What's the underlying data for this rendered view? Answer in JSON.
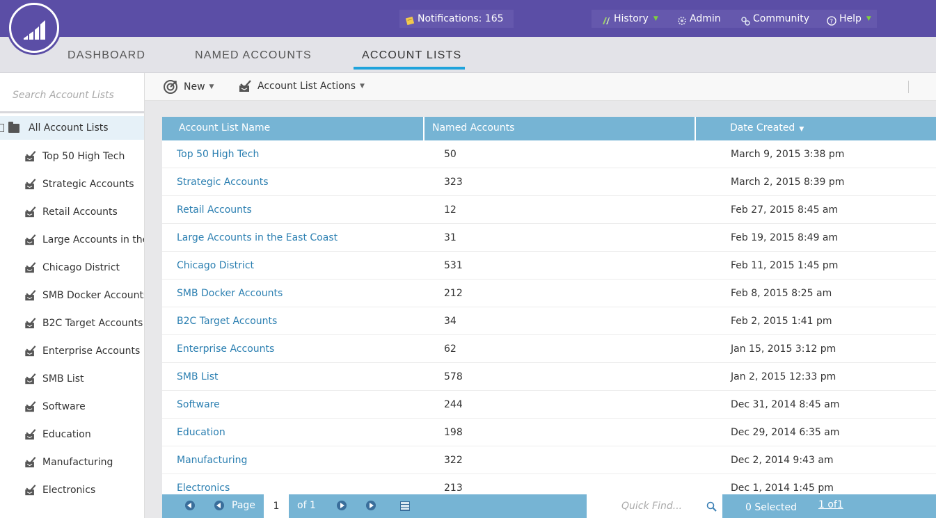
{
  "header": {
    "notifications_label": "Notifications: 165",
    "history_label": "History",
    "admin_label": "Admin",
    "community_label": "Community",
    "help_label": "Help"
  },
  "tabs": [
    {
      "label": "DASHBOARD"
    },
    {
      "label": "NAMED ACCOUNTS"
    },
    {
      "label": "ACCOUNT LISTS"
    }
  ],
  "sidebar": {
    "search_placeholder": "Search Account Lists",
    "root_label": "All Account Lists",
    "items": [
      {
        "label": "Top 50 High Tech"
      },
      {
        "label": "Strategic Accounts"
      },
      {
        "label": "Retail Accounts"
      },
      {
        "label": "Large Accounts in the"
      },
      {
        "label": "Chicago District"
      },
      {
        "label": "SMB Docker Accounts"
      },
      {
        "label": "B2C Target Accounts"
      },
      {
        "label": "Enterprise Accounts"
      },
      {
        "label": "SMB List"
      },
      {
        "label": "Software"
      },
      {
        "label": "Education"
      },
      {
        "label": "Manufacturing"
      },
      {
        "label": "Electronics"
      }
    ]
  },
  "toolbar": {
    "new_label": "New",
    "actions_label": "Account List Actions"
  },
  "grid": {
    "columns": [
      "Account List Name",
      "Named Accounts",
      "Date Created"
    ],
    "rows": [
      {
        "name": "Top 50 High Tech",
        "count": "50",
        "date": "March 9, 2015 3:38 pm"
      },
      {
        "name": "Strategic Accounts",
        "count": "323",
        "date": "March 2, 2015 8:39 pm"
      },
      {
        "name": "Retail Accounts",
        "count": "12",
        "date": "Feb 27, 2015 8:45 am"
      },
      {
        "name": "Large Accounts in the East Coast",
        "count": "31",
        "date": "Feb 19, 2015 8:49 am"
      },
      {
        "name": "Chicago District",
        "count": "531",
        "date": "Feb 11, 2015 1:45 pm"
      },
      {
        "name": "SMB Docker Accounts",
        "count": "212",
        "date": "Feb 8, 2015 8:25 am"
      },
      {
        "name": "B2C Target Accounts",
        "count": "34",
        "date": "Feb 2, 2015 1:41 pm"
      },
      {
        "name": "Enterprise Accounts",
        "count": "62",
        "date": "Jan 15, 2015 3:12 pm"
      },
      {
        "name": "SMB List",
        "count": "578",
        "date": "Jan 2, 2015 12:33 pm"
      },
      {
        "name": "Software",
        "count": "244",
        "date": "Dec 31, 2014 8:45 am"
      },
      {
        "name": "Education",
        "count": "198",
        "date": "Dec 29, 2014 6:35 am"
      },
      {
        "name": "Manufacturing",
        "count": "322",
        "date": "Dec 2, 2014 9:43 am"
      },
      {
        "name": "Electronics",
        "count": "213",
        "date": "Dec 1, 2014 1:45 pm"
      }
    ]
  },
  "pager": {
    "page_label": "Page",
    "page_value": "1",
    "of_label": "of 1",
    "quick_find_placeholder": "Quick Find...",
    "selected_label": "0 Selected",
    "range_label": "1 of1"
  }
}
